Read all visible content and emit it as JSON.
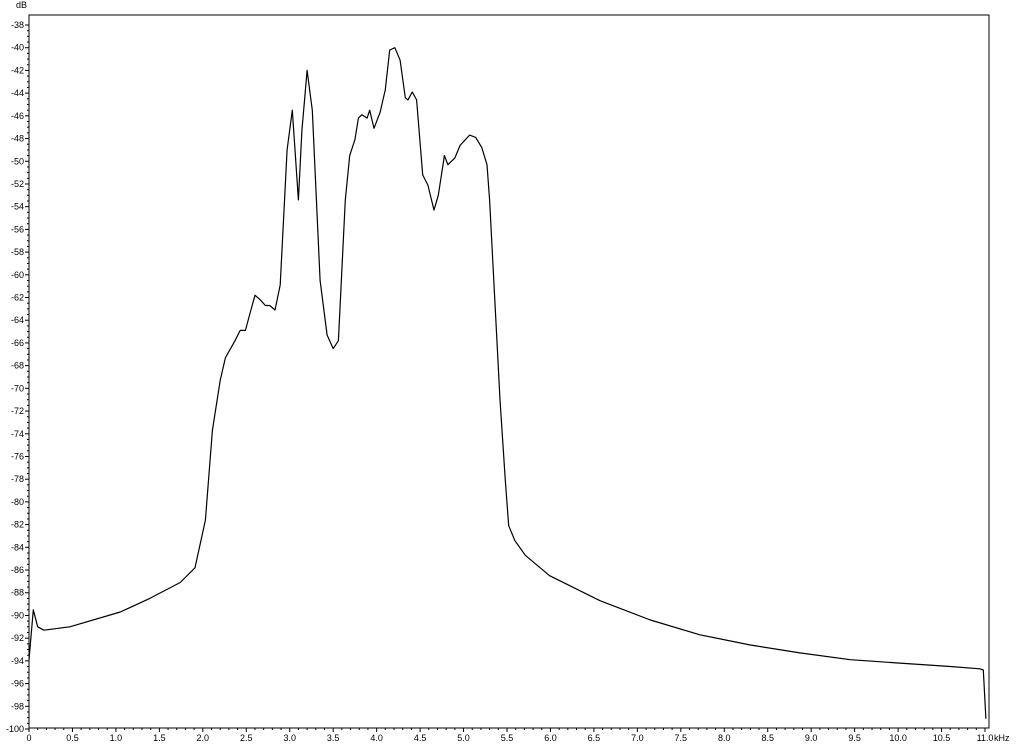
{
  "chart_data": {
    "type": "line",
    "title": "",
    "xlabel": "kHz",
    "ylabel": "dB",
    "xlim": [
      0,
      11.0
    ],
    "ylim": [
      -100,
      -38
    ],
    "grid": false,
    "x_ticks": [
      "0",
      "0.5",
      "1.0",
      "1.5",
      "2.0",
      "2.5",
      "3.0",
      "3.5",
      "4.0",
      "4.5",
      "5.0",
      "5.5",
      "6.0",
      "6.5",
      "7.0",
      "7.5",
      "8.0",
      "8.5",
      "9.0",
      "9.5",
      "10.0",
      "10.5",
      "11.0"
    ],
    "y_ticks": [
      "-38",
      "-40",
      "-42",
      "-44",
      "-46",
      "-48",
      "-50",
      "-52",
      "-54",
      "-56",
      "-58",
      "-60",
      "-62",
      "-64",
      "-66",
      "-68",
      "-70",
      "-72",
      "-74",
      "-76",
      "-78",
      "-80",
      "-82",
      "-84",
      "-86",
      "-88",
      "-90",
      "-92",
      "-94",
      "-96",
      "-98",
      "-100"
    ],
    "series": [
      {
        "color": "#000000",
        "x": [
          0,
          0.05,
          0.1,
          0.17,
          0.47,
          1.05,
          1.39,
          1.74,
          1.91,
          2.03,
          2.11,
          2.2,
          2.26,
          2.37,
          2.43,
          2.49,
          2.54,
          2.6,
          2.66,
          2.72,
          2.77,
          2.83,
          2.89,
          2.97,
          3.03,
          3.1,
          3.14,
          3.2,
          3.26,
          3.35,
          3.43,
          3.5,
          3.56,
          3.64,
          3.69,
          3.75,
          3.79,
          3.83,
          3.89,
          3.92,
          3.97,
          4.04,
          4.1,
          4.15,
          4.21,
          4.27,
          4.33,
          4.36,
          4.41,
          4.46,
          4.53,
          4.59,
          4.66,
          4.71,
          4.78,
          4.82,
          4.9,
          4.96,
          5.02,
          5.07,
          5.14,
          5.21,
          5.27,
          5.3,
          5.36,
          5.42,
          5.48,
          5.52,
          5.59,
          5.71,
          5.99,
          6.57,
          7.15,
          7.72,
          8.3,
          8.87,
          9.45,
          10.02,
          10.6,
          10.94,
          10.98,
          11.01
        ],
        "y": [
          -93.9,
          -89.5,
          -91,
          -91.3,
          -91,
          -89.7,
          -88.5,
          -87.1,
          -85.8,
          -81.6,
          -73.7,
          -69.3,
          -67.3,
          -65.8,
          -64.9,
          -64.9,
          -63.5,
          -61.8,
          -62.2,
          -62.7,
          -62.7,
          -63.1,
          -60.9,
          -49,
          -45.5,
          -53.4,
          -47.3,
          -42,
          -45.5,
          -60.5,
          -65.3,
          -66.5,
          -65.8,
          -53.4,
          -49.5,
          -48.1,
          -46.2,
          -45.9,
          -46.2,
          -45.5,
          -47.1,
          -45.7,
          -43.7,
          -40.2,
          -40,
          -41.1,
          -44.4,
          -44.6,
          -43.9,
          -44.6,
          -51.2,
          -52.1,
          -54.3,
          -53,
          -49.5,
          -50.3,
          -49.7,
          -48.6,
          -48.1,
          -47.7,
          -47.9,
          -48.8,
          -50.3,
          -53.4,
          -62.2,
          -71,
          -78.1,
          -82.1,
          -83.4,
          -84.7,
          -86.5,
          -88.7,
          -90.4,
          -91.7,
          -92.6,
          -93.3,
          -93.9,
          -94.2,
          -94.5,
          -94.7,
          -94.8,
          -99.1
        ]
      }
    ]
  }
}
